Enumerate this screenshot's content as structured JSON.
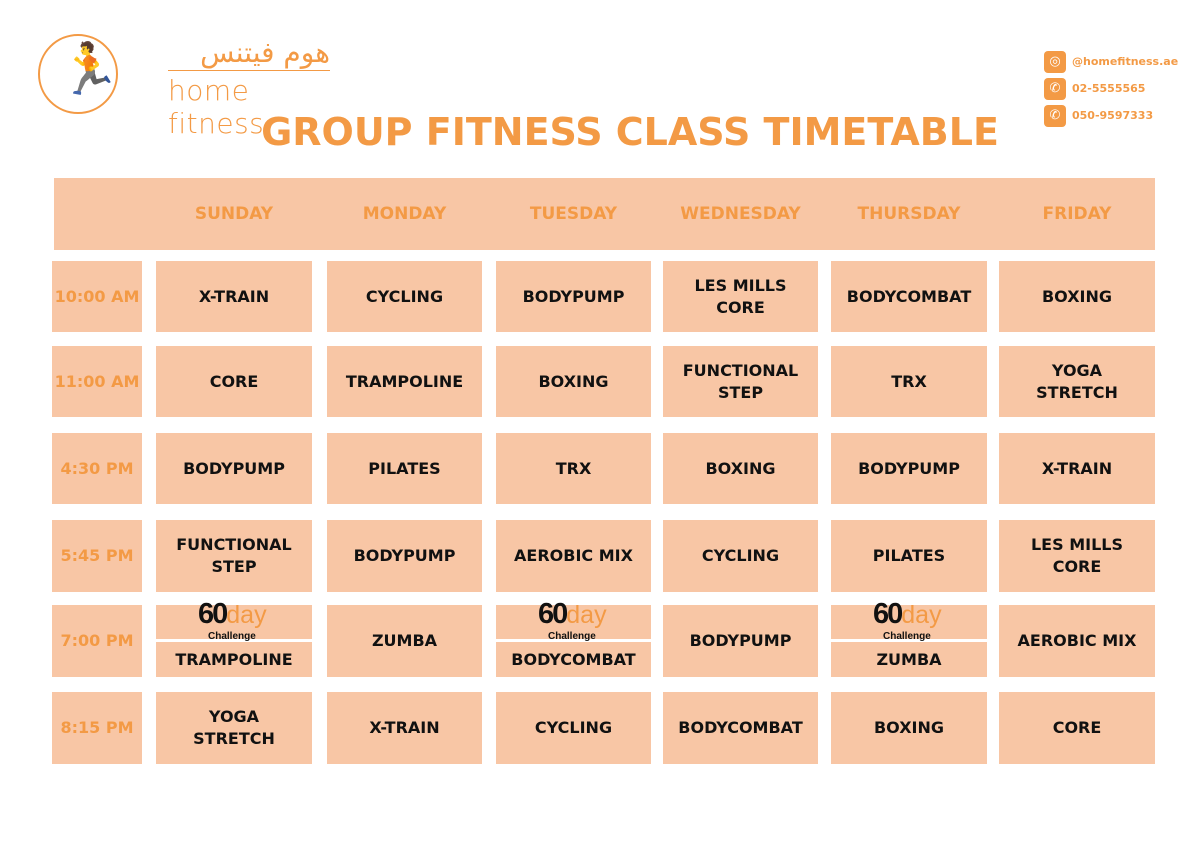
{
  "brand": {
    "name_ar": "هوم فيتنس",
    "name_en": "home fitness",
    "logo_icon": "runner-icon"
  },
  "contacts": [
    {
      "icon": "instagram-icon",
      "text": "@homefitness.ae"
    },
    {
      "icon": "phone-icon",
      "text": "02-5555565"
    },
    {
      "icon": "whatsapp-icon",
      "text": "050-9597333"
    }
  ],
  "title": "GROUP FITNESS CLASS TIMETABLE",
  "colors": {
    "accent": "#f39a45",
    "cell": "#f8c6a5"
  },
  "badge": {
    "number": "60",
    "word": "day",
    "sub": "Challenge"
  },
  "days": [
    "SUNDAY",
    "MONDAY",
    "TUESDAY",
    "WEDNESDAY",
    "THURSDAY",
    "FRIDAY"
  ],
  "rows": [
    {
      "time": "10:00 AM",
      "classes": [
        {
          "name": "X-TRAIN"
        },
        {
          "name": "CYCLING"
        },
        {
          "name": "BODYPUMP"
        },
        {
          "name": "LES MILLS CORE"
        },
        {
          "name": "BODYCOMBAT"
        },
        {
          "name": "BOXING"
        }
      ]
    },
    {
      "time": "11:00 AM",
      "classes": [
        {
          "name": "CORE"
        },
        {
          "name": "TRAMPOLINE"
        },
        {
          "name": "BOXING"
        },
        {
          "name": "FUNCTIONAL STEP"
        },
        {
          "name": "TRX"
        },
        {
          "name": "YOGA STRETCH"
        }
      ]
    },
    {
      "time": "4:30 PM",
      "classes": [
        {
          "name": "BODYPUMP"
        },
        {
          "name": "PILATES"
        },
        {
          "name": "TRX"
        },
        {
          "name": "BOXING"
        },
        {
          "name": "BODYPUMP"
        },
        {
          "name": "X-TRAIN"
        }
      ]
    },
    {
      "time": "5:45 PM",
      "classes": [
        {
          "name": "FUNCTIONAL STEP"
        },
        {
          "name": "BODYPUMP"
        },
        {
          "name": "AEROBIC MIX"
        },
        {
          "name": "CYCLING"
        },
        {
          "name": "PILATES"
        },
        {
          "name": "LES MILLS CORE"
        }
      ]
    },
    {
      "time": "7:00 PM",
      "classes": [
        {
          "name": "TRAMPOLINE",
          "challenge": true
        },
        {
          "name": "ZUMBA"
        },
        {
          "name": "BODYCOMBAT",
          "challenge": true
        },
        {
          "name": "BODYPUMP"
        },
        {
          "name": "ZUMBA",
          "challenge": true
        },
        {
          "name": "AEROBIC MIX"
        }
      ]
    },
    {
      "time": "8:15 PM",
      "classes": [
        {
          "name": "YOGA STRETCH"
        },
        {
          "name": "X-TRAIN"
        },
        {
          "name": "CYCLING"
        },
        {
          "name": "BODYCOMBAT"
        },
        {
          "name": "BOXING"
        },
        {
          "name": "CORE"
        }
      ]
    }
  ]
}
